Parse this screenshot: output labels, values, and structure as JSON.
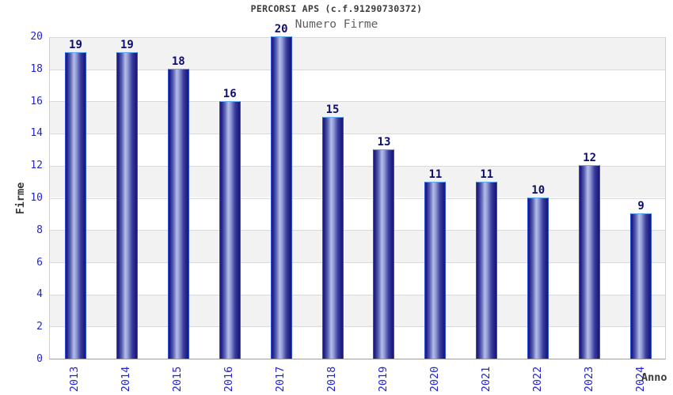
{
  "chart_data": {
    "type": "bar",
    "title": "PERCORSI APS (c.f.91290730372)",
    "subtitle": "Numero Firme",
    "xlabel": "Anno",
    "ylabel": "Firme",
    "categories": [
      "2013",
      "2014",
      "2015",
      "2016",
      "2017",
      "2018",
      "2019",
      "2020",
      "2021",
      "2022",
      "2023",
      "2024"
    ],
    "values": [
      19,
      19,
      18,
      16,
      20,
      15,
      13,
      11,
      11,
      10,
      12,
      9
    ],
    "ylim": [
      0,
      20
    ],
    "ytick_step": 2,
    "grid": "horizontal-bands-alternating",
    "legend": "none",
    "colors": {
      "bar_dark": "#1b1b7d",
      "bar_light": "#b4bce9",
      "bar_border_top": "#5fa8f2",
      "bar_border_side": "#2f4fd4",
      "axis_tick_label": "#2424cf",
      "value_label": "#0d0d6e",
      "band_gray": "#f2f2f2",
      "gridline": "#d9d9d9",
      "title_text": "#3a3a3a",
      "subtitle_text": "#606060"
    }
  }
}
